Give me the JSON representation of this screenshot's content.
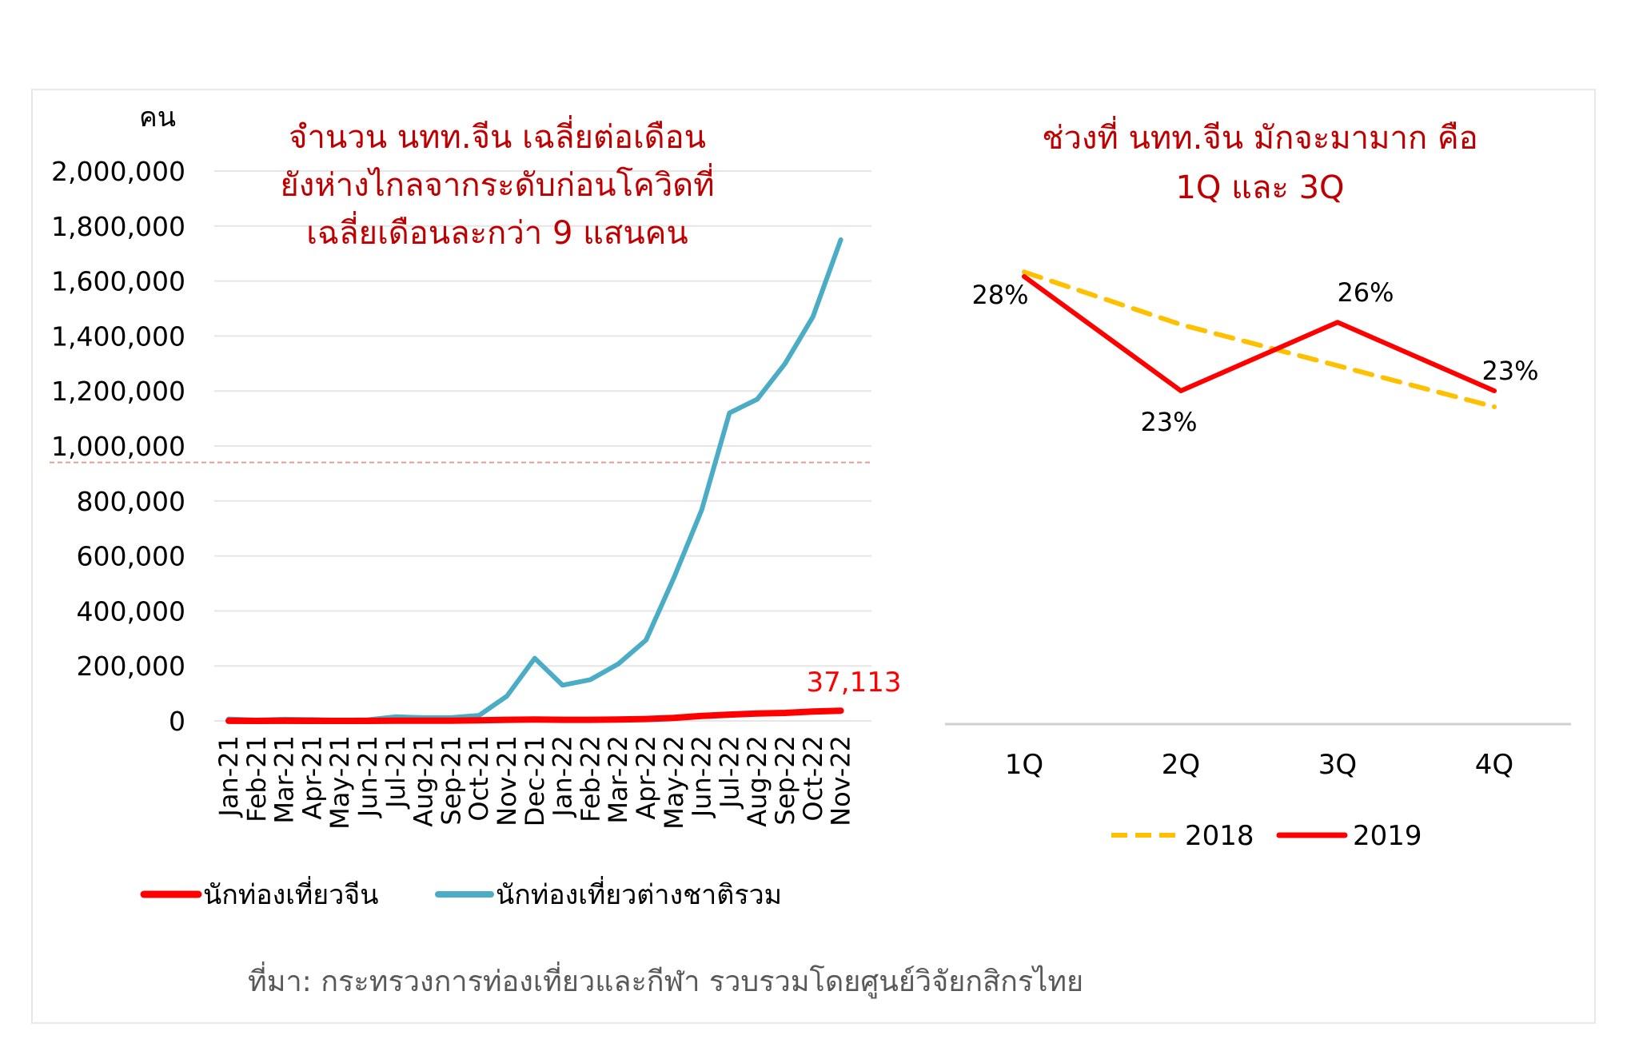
{
  "colors": {
    "chinese": "#ff0000",
    "total": "#4bacc6",
    "y2018": "#ffc000",
    "y2019": "#ff0000",
    "title": "#c00000",
    "reference_line": "#e0a090",
    "source": "#595959"
  },
  "chart_data": [
    {
      "type": "line",
      "title": [
        "จำนวน นทท.จีน เฉลี่ยต่อเดือน",
        "ยังห่างไกลจากระดับก่อนโควิดที่",
        "เฉลี่ยเดือนละกว่า 9 แสนคน"
      ],
      "ylabel": "คน",
      "ylim": [
        0,
        2000000
      ],
      "yticks": [
        0,
        200000,
        400000,
        600000,
        800000,
        1000000,
        1200000,
        1400000,
        1600000,
        1800000,
        2000000
      ],
      "ytick_labels": [
        "0",
        "200,000",
        "400,000",
        "600,000",
        "800,000",
        "1,000,000",
        "1,200,000",
        "1,400,000",
        "1,600,000",
        "1,800,000",
        "2,000,000"
      ],
      "reference_line": 940000,
      "categories": [
        "Jan-21",
        "Feb-21",
        "Mar-21",
        "Apr-21",
        "May-21",
        "Jun-21",
        "Jul-21",
        "Aug-21",
        "Sep-21",
        "Oct-21",
        "Nov-21",
        "Dec-21",
        "Jan-22",
        "Feb-22",
        "Mar-22",
        "Apr-22",
        "May-22",
        "Jun-22",
        "Jul-22",
        "Aug-22",
        "Sep-22",
        "Oct-22",
        "Nov-22"
      ],
      "series": [
        {
          "name": "นักท่องเที่ยวจีน",
          "values": [
            200,
            100,
            200,
            100,
            100,
            100,
            1000,
            1000,
            1000,
            2000,
            4000,
            5000,
            4000,
            4000,
            5000,
            7000,
            11000,
            18000,
            23000,
            27000,
            29000,
            34000,
            37113
          ]
        },
        {
          "name": "นักท่องเที่ยวต่างชาติรวม",
          "values": [
            7000,
            3000,
            6000,
            5000,
            2000,
            4000,
            15000,
            12000,
            12000,
            20000,
            90000,
            228000,
            130000,
            150000,
            207000,
            294000,
            520000,
            767000,
            1120000,
            1170000,
            1300000,
            1470000,
            1750000
          ]
        }
      ],
      "last_label": "37,113",
      "legend": "bottom"
    },
    {
      "type": "line",
      "title": [
        "ช่วงที่ นทท.จีน มักจะมามาก คือ",
        "1Q และ 3Q"
      ],
      "categories": [
        "1Q",
        "2Q",
        "3Q",
        "4Q"
      ],
      "ylim": [
        20,
        30
      ],
      "series": [
        {
          "name": "2018",
          "values": [
            28.2,
            25.9,
            24.1,
            22.3
          ],
          "style": "dashed"
        },
        {
          "name": "2019",
          "values": [
            28,
            23,
            26,
            23
          ],
          "labels": [
            "28%",
            "23%",
            "26%",
            "23%"
          ]
        }
      ],
      "legend": "bottom"
    }
  ],
  "source": "ที่มา: กระทรวงการท่องเที่ยวและกีฬา รวบรวมโดยศูนย์วิจัยกสิกรไทย"
}
